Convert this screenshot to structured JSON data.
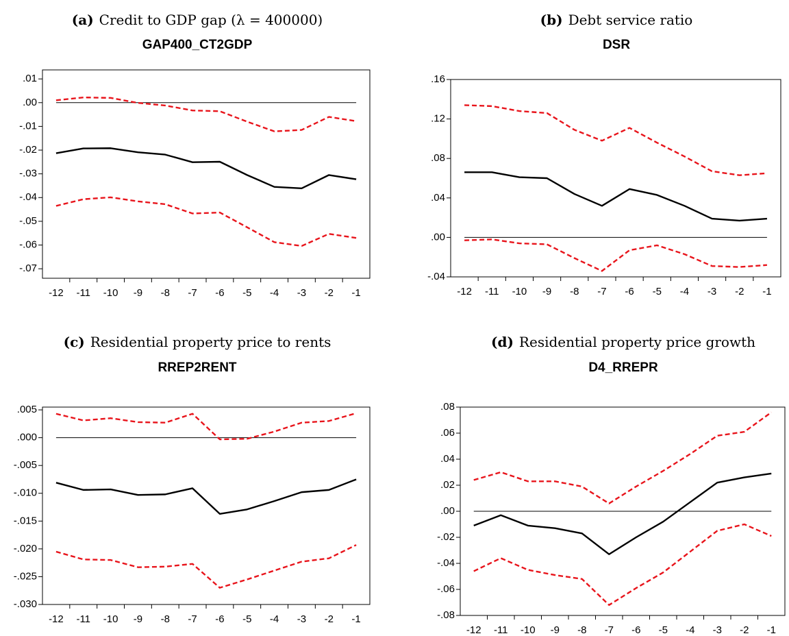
{
  "chart_data": [
    {
      "type": "line",
      "label": "(a)",
      "caption": "Credit to GDP gap (λ = 400000)",
      "title": "GAP400_CT2GDP",
      "categories": [
        "-12",
        "-11",
        "-10",
        "-9",
        "-8",
        "-7",
        "-6",
        "-5",
        "-4",
        "-3",
        "-2",
        "-1"
      ],
      "hline": 0,
      "series": [
        {
          "color": "#000000",
          "dash": false,
          "values": [
            -0.0213,
            -0.0193,
            -0.0192,
            -0.0209,
            -0.0219,
            -0.0251,
            -0.0249,
            -0.0305,
            -0.0355,
            -0.0361,
            -0.0305,
            -0.0323
          ]
        },
        {
          "color": "#e8141b",
          "dash": true,
          "values": [
            0.001,
            0.0022,
            0.002,
            -0.0001,
            -0.0012,
            -0.0033,
            -0.0036,
            -0.008,
            -0.0121,
            -0.0115,
            -0.006,
            -0.0078
          ]
        },
        {
          "color": "#e8141b",
          "dash": true,
          "values": [
            -0.0435,
            -0.0407,
            -0.0399,
            -0.0416,
            -0.0428,
            -0.0467,
            -0.0463,
            -0.0525,
            -0.0588,
            -0.0604,
            -0.0553,
            -0.057
          ]
        }
      ],
      "ylim": [
        -0.074,
        0.0138
      ],
      "yticks": [
        {
          "value": 0.01,
          "label": ".01"
        },
        {
          "value": 0,
          "label": ".00"
        },
        {
          "value": -0.01,
          "label": "-.01"
        },
        {
          "value": -0.02,
          "label": "-.02"
        },
        {
          "value": -0.03,
          "label": "-.03"
        },
        {
          "value": -0.04,
          "label": "-.04"
        },
        {
          "value": -0.05,
          "label": "-.05"
        },
        {
          "value": -0.06,
          "label": "-.06"
        },
        {
          "value": -0.07,
          "label": "-.07"
        }
      ]
    },
    {
      "type": "line",
      "label": "(b)",
      "caption": "Debt service ratio",
      "title": "DSR",
      "categories": [
        "-12",
        "-11",
        "-10",
        "-9",
        "-8",
        "-7",
        "-6",
        "-5",
        "-4",
        "-3",
        "-2",
        "-1"
      ],
      "hline": 0,
      "series": [
        {
          "color": "#000000",
          "dash": false,
          "values": [
            0.066,
            0.066,
            0.061,
            0.06,
            0.044,
            0.032,
            0.049,
            0.043,
            0.032,
            0.019,
            0.017,
            0.019
          ]
        },
        {
          "color": "#e8141b",
          "dash": true,
          "values": [
            0.134,
            0.133,
            0.128,
            0.126,
            0.109,
            0.098,
            0.111,
            0.096,
            0.082,
            0.067,
            0.063,
            0.065
          ]
        },
        {
          "color": "#e8141b",
          "dash": true,
          "values": [
            -0.003,
            -0.002,
            -0.006,
            -0.007,
            -0.021,
            -0.034,
            -0.013,
            -0.008,
            -0.017,
            -0.029,
            -0.03,
            -0.028
          ]
        }
      ],
      "ylim": [
        -0.04,
        0.16
      ],
      "yticks": [
        {
          "value": 0.16,
          "label": ".16"
        },
        {
          "value": 0.12,
          "label": ".12"
        },
        {
          "value": 0.08,
          "label": ".08"
        },
        {
          "value": 0.04,
          "label": ".04"
        },
        {
          "value": 0,
          "label": ".00"
        },
        {
          "value": -0.04,
          "label": "-.04"
        }
      ]
    },
    {
      "type": "line",
      "label": "(c)",
      "caption": "Residential property price to rents",
      "title": "RREP2RENT",
      "categories": [
        "-12",
        "-11",
        "-10",
        "-9",
        "-8",
        "-7",
        "-6",
        "-5",
        "-4",
        "-3",
        "-2",
        "-1"
      ],
      "hline": 0,
      "series": [
        {
          "color": "#000000",
          "dash": false,
          "values": [
            -0.0081,
            -0.0094,
            -0.0093,
            -0.0103,
            -0.0102,
            -0.0091,
            -0.0137,
            -0.0129,
            -0.0114,
            -0.0098,
            -0.0094,
            -0.0075
          ]
        },
        {
          "color": "#e8141b",
          "dash": true,
          "values": [
            0.0043,
            0.0031,
            0.0035,
            0.0028,
            0.0027,
            0.0043,
            -0.0003,
            -0.0002,
            0.0011,
            0.0027,
            0.003,
            0.0044
          ]
        },
        {
          "color": "#e8141b",
          "dash": true,
          "values": [
            -0.0205,
            -0.0219,
            -0.022,
            -0.0233,
            -0.0232,
            -0.0227,
            -0.027,
            -0.0255,
            -0.0239,
            -0.0223,
            -0.0217,
            -0.0193
          ]
        }
      ],
      "ylim": [
        -0.03,
        0.0055
      ],
      "yticks": [
        {
          "value": 0.005,
          "label": ".005"
        },
        {
          "value": 0,
          "label": ".000"
        },
        {
          "value": -0.005,
          "label": "-.005"
        },
        {
          "value": -0.01,
          "label": "-.010"
        },
        {
          "value": -0.015,
          "label": "-.015"
        },
        {
          "value": -0.02,
          "label": "-.020"
        },
        {
          "value": -0.025,
          "label": "-.025"
        },
        {
          "value": -0.03,
          "label": "-.030"
        }
      ]
    },
    {
      "type": "line",
      "label": "(d)",
      "caption": "Residential property price growth",
      "title": "D4_RREPR",
      "categories": [
        "-12",
        "-11",
        "-10",
        "-9",
        "-8",
        "-7",
        "-6",
        "-5",
        "-4",
        "-3",
        "-2",
        "-1"
      ],
      "hline": 0,
      "series": [
        {
          "color": "#000000",
          "dash": false,
          "values": [
            -0.011,
            -0.003,
            -0.011,
            -0.013,
            -0.017,
            -0.033,
            -0.02,
            -0.008,
            0.007,
            0.022,
            0.026,
            0.029
          ]
        },
        {
          "color": "#e8141b",
          "dash": true,
          "values": [
            0.024,
            0.03,
            0.023,
            0.023,
            0.019,
            0.006,
            0.019,
            0.031,
            0.044,
            0.058,
            0.061,
            0.076
          ]
        },
        {
          "color": "#e8141b",
          "dash": true,
          "values": [
            -0.046,
            -0.036,
            -0.045,
            -0.049,
            -0.052,
            -0.072,
            -0.059,
            -0.047,
            -0.031,
            -0.015,
            -0.01,
            -0.019
          ]
        }
      ],
      "ylim": [
        -0.08,
        0.08
      ],
      "yticks": [
        {
          "value": 0.08,
          "label": ".08"
        },
        {
          "value": 0.06,
          "label": ".06"
        },
        {
          "value": 0.04,
          "label": ".04"
        },
        {
          "value": 0.02,
          "label": ".02"
        },
        {
          "value": 0,
          "label": ".00"
        },
        {
          "value": -0.02,
          "label": "-.02"
        },
        {
          "value": -0.04,
          "label": "-.04"
        },
        {
          "value": -0.06,
          "label": "-.06"
        },
        {
          "value": -0.08,
          "label": "-.08"
        }
      ]
    }
  ]
}
